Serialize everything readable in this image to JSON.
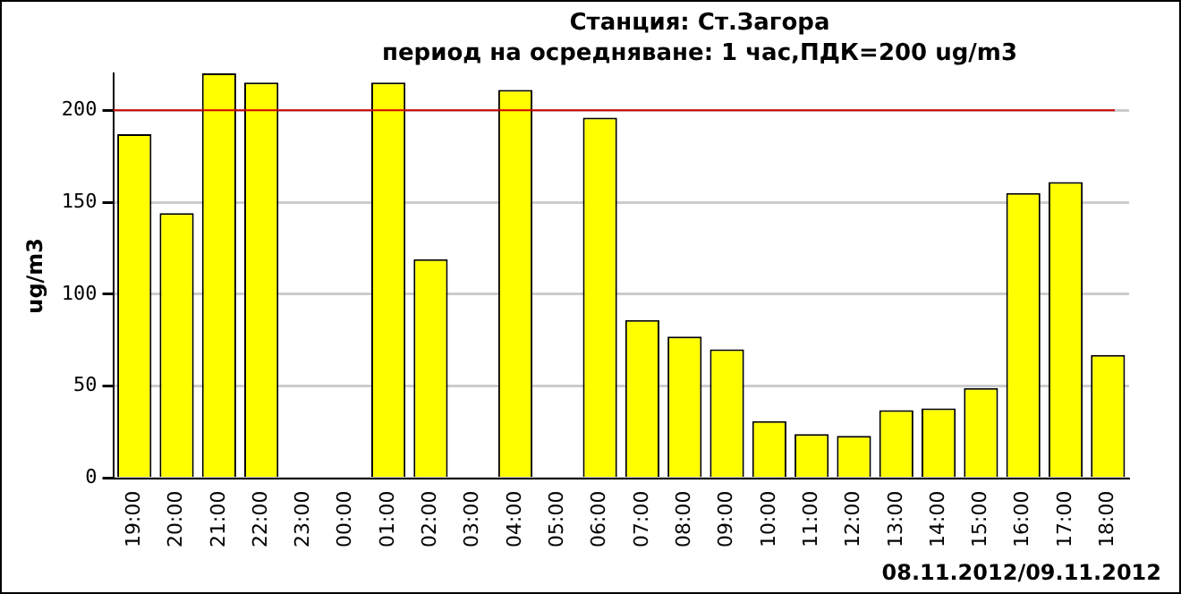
{
  "chart_data": {
    "type": "bar",
    "title": "Станция: Ст.Загора\nпериод на осредняване: 1 час,ПДК=200 ug/m3",
    "ylabel": "ug/m3",
    "categories": [
      "19:00",
      "20:00",
      "21:00",
      "22:00",
      "23:00",
      "00:00",
      "01:00",
      "02:00",
      "03:00",
      "04:00",
      "05:00",
      "06:00",
      "07:00",
      "08:00",
      "09:00",
      "10:00",
      "11:00",
      "12:00",
      "13:00",
      "14:00",
      "15:00",
      "16:00",
      "17:00",
      "18:00"
    ],
    "values": [
      187,
      144,
      220,
      215,
      null,
      null,
      215,
      119,
      null,
      211,
      null,
      196,
      86,
      77,
      70,
      31,
      24,
      23,
      37,
      38,
      49,
      155,
      161,
      67
    ],
    "color": "#ffff00",
    "ylim": [
      0,
      220
    ],
    "yticks": [
      0,
      50,
      100,
      150,
      200
    ],
    "grid": "y",
    "ref_lines": [
      {
        "axis": "y",
        "value": 200,
        "color": "#d00000"
      }
    ],
    "annotations": [
      "08.11.2012/09.11.2012"
    ]
  }
}
